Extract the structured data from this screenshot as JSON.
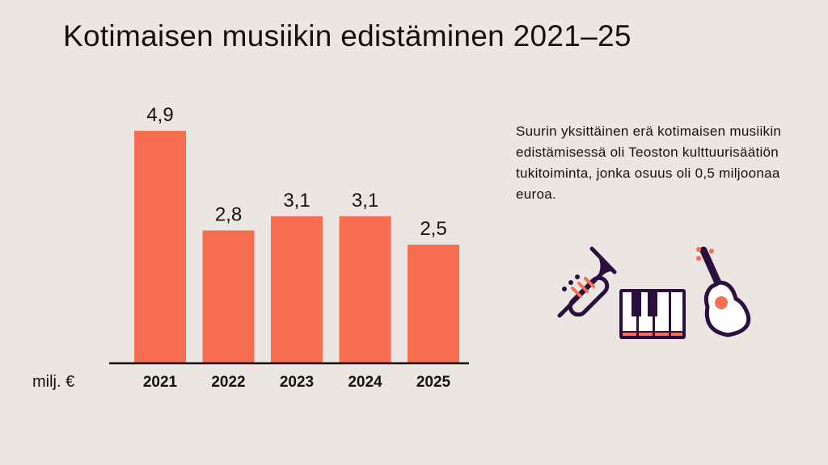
{
  "title": "Kotimaisen musiikin edistäminen 2021–25",
  "note": "Suurin yksittäinen erä kotimaisen musiikin edistämisessä oli Teoston kulttuurisäätiön tukitoiminta, jonka osuus oli 0,5 miljoonaa euroa.",
  "icons": [
    "trumpet-icon",
    "piano-keyboard-icon",
    "guitar-icon"
  ],
  "colors": {
    "bar": "#f76f50",
    "background": "#ebe6e2",
    "icon_dark": "#2a0f3f"
  },
  "chart_data": {
    "type": "bar",
    "title": "Kotimaisen musiikin edistäminen 2021–25",
    "unit_label": "milj. €",
    "categories": [
      "2021",
      "2022",
      "2023",
      "2024",
      "2025"
    ],
    "values": [
      4.9,
      2.8,
      3.1,
      3.1,
      2.5
    ],
    "value_labels": [
      "4,9",
      "2,8",
      "3,1",
      "3,1",
      "2,5"
    ],
    "ylim": [
      0,
      4.9
    ],
    "grid": false,
    "legend": "none"
  }
}
